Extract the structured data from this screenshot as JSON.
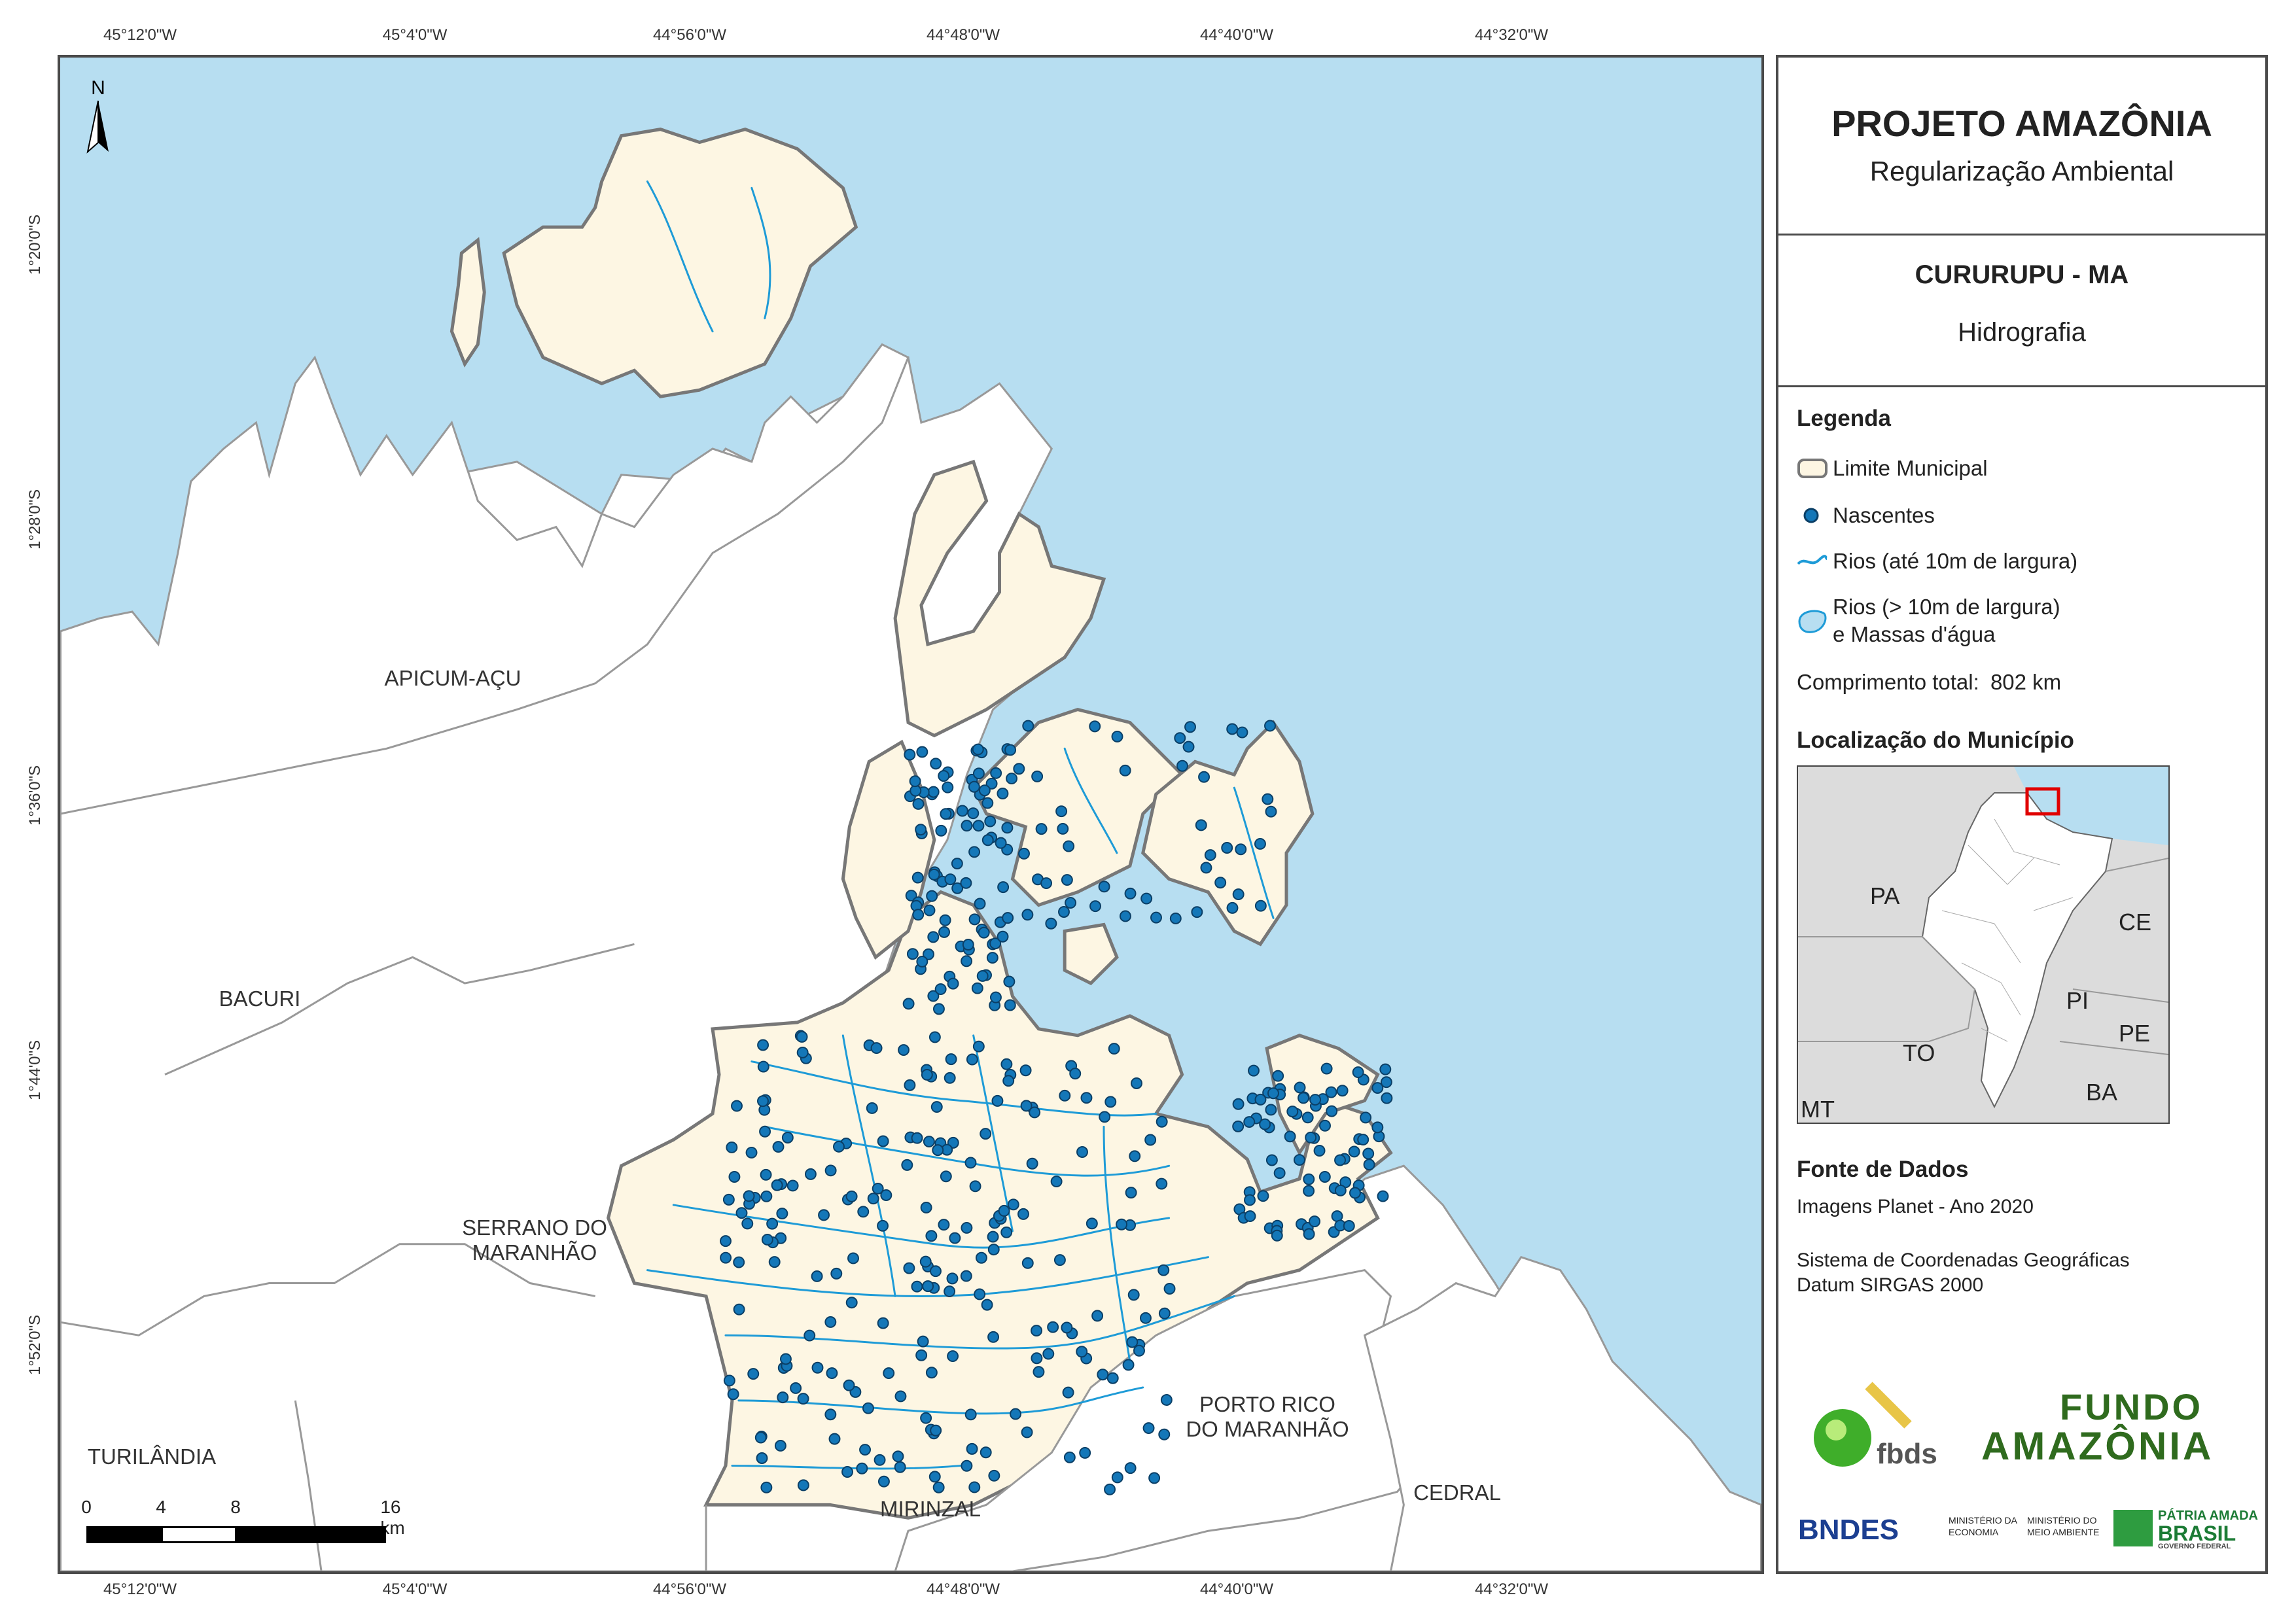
{
  "panel": {
    "title": "PROJETO AMAZÔNIA",
    "subtitle": "Regularização Ambiental",
    "municipality": "CURURUPU - MA",
    "theme": "Hidrografia"
  },
  "legend": {
    "heading": "Legenda",
    "items": [
      {
        "label": "Limite Municipal",
        "symbol": "polygon-outline"
      },
      {
        "label": "Nascentes",
        "symbol": "dot"
      },
      {
        "label": "Rios (até 10m de largura)",
        "symbol": "line"
      },
      {
        "label": "Rios (> 10m de largura)",
        "label2": "e Massas d'água",
        "symbol": "water-polygon"
      }
    ],
    "total_label": "Comprimento total:",
    "total_value": "802 km"
  },
  "location": {
    "heading": "Localização do Município",
    "states": [
      "PA",
      "CE",
      "PI",
      "PE",
      "TO",
      "BA",
      "MT"
    ]
  },
  "sources": {
    "heading": "Fonte de Dados",
    "line1": "Imagens Planet - Ano 2020",
    "line2": "Sistema de Coordenadas Geográficas",
    "line3": "Datum SIRGAS 2000"
  },
  "logos": {
    "fbds": "fbds",
    "fundo_line1": "FUNDO",
    "fundo_line2": "AMAZÔNIA",
    "bndes": "BNDES",
    "min_economia_1": "MINISTÉRIO DA",
    "min_economia_2": "ECONOMIA",
    "min_meio_1": "MINISTÉRIO DO",
    "min_meio_2": "MEIO AMBIENTE",
    "patria_1": "PÁTRIA AMADA",
    "patria_2": "BRASIL",
    "patria_3": "GOVERNO FEDERAL"
  },
  "coordinates": {
    "longitudes": [
      "45°12'0\"W",
      "45°4'0\"W",
      "44°56'0\"W",
      "44°48'0\"W",
      "44°40'0\"W",
      "44°32'0\"W"
    ],
    "latitudes": [
      "1°20'0\"S",
      "1°28'0\"S",
      "1°36'0\"S",
      "1°44'0\"S",
      "1°52'0\"S"
    ]
  },
  "municipalities": {
    "apicum_acu": "APICUM-AÇU",
    "bacuri": "BACURI",
    "serrano": "SERRANO DO\nMARANHÃO",
    "turilandia": "TURILÂNDIA",
    "mirinzal": "MIRINZAL",
    "porto_rico": "PORTO RICO\nDO MARANHÃO",
    "cedral": "CEDRAL"
  },
  "scale": {
    "labels": [
      "0",
      "4",
      "8",
      "16 km"
    ]
  },
  "north": "N",
  "colors": {
    "ocean": "#b7def1",
    "land": "#ffffff",
    "municipality": "#fdf6e3",
    "river": "#1e9bd7",
    "spring": "#1477b8",
    "border": "#777777"
  }
}
